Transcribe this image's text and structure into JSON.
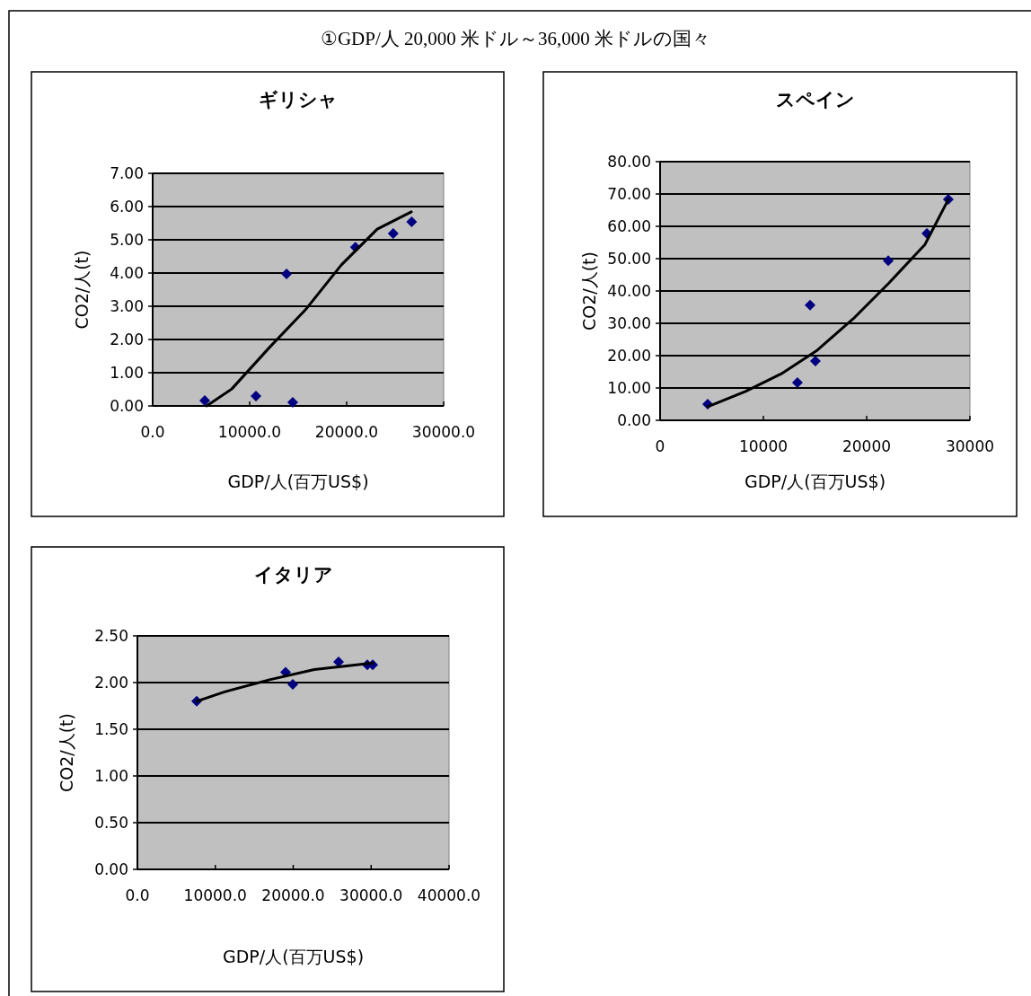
{
  "chart_data": [
    {
      "type": "scatter",
      "title": "ギリシャ",
      "annotations": [
        "①GDP/人 20,000 米ドル～36,000 米ドルの国々"
      ],
      "xlabel": "GDP/人(百万US$)",
      "ylabel": "CO2/人(t)",
      "xlim": [
        0,
        30000
      ],
      "ylim": [
        0,
        7
      ],
      "grid": "y",
      "xticks": [
        {
          "value": 0,
          "label": "0.0"
        },
        {
          "value": 10000,
          "label": "10000.0"
        },
        {
          "value": 20000,
          "label": "20000.0"
        },
        {
          "value": 30000,
          "label": "30000.0"
        }
      ],
      "yticks": [
        {
          "value": 0,
          "label": "0.00"
        },
        {
          "value": 1,
          "label": "1.00"
        },
        {
          "value": 2,
          "label": "2.00"
        },
        {
          "value": 3,
          "label": "3.00"
        },
        {
          "value": 4,
          "label": "4.00"
        },
        {
          "value": 5,
          "label": "5.00"
        },
        {
          "value": 6,
          "label": "6.00"
        },
        {
          "value": 7,
          "label": "7.00"
        }
      ],
      "series": [
        {
          "color": "#000080",
          "marker": "diamond",
          "x": [
            5370,
            10650,
            13800,
            14440,
            20900,
            24800,
            26700
          ],
          "values": [
            0.16,
            0.3,
            3.97,
            0.11,
            4.78,
            5.19,
            5.54
          ]
        },
        {
          "type": "line",
          "marker": "none",
          "color": "#000000",
          "x": [
            5560,
            8150,
            12040,
            15740,
            19440,
            23150,
            26670
          ],
          "values": [
            0.0,
            0.51,
            1.76,
            2.89,
            4.24,
            5.32,
            5.84
          ]
        }
      ]
    },
    {
      "type": "scatter",
      "title": "スペイン",
      "xlabel": "GDP/人(百万US$)",
      "ylabel": "CO2/人(t)",
      "xlim": [
        0,
        30000
      ],
      "ylim": [
        0,
        80
      ],
      "grid": "y",
      "xticks": [
        0,
        10000,
        20000,
        30000
      ],
      "yticks": [
        {
          "value": 0,
          "label": "0.00"
        },
        {
          "value": 10,
          "label": "10.00"
        },
        {
          "value": 20,
          "label": "20.00"
        },
        {
          "value": 30,
          "label": "30.00"
        },
        {
          "value": 40,
          "label": "40.00"
        },
        {
          "value": 50,
          "label": "50.00"
        },
        {
          "value": 60,
          "label": "60.00"
        },
        {
          "value": 70,
          "label": "70.00"
        },
        {
          "value": 80,
          "label": "80.00"
        }
      ],
      "series": [
        {
          "color": "#000080",
          "marker": "diamond",
          "x": [
            4610,
            13300,
            14520,
            15040,
            22090,
            25830,
            27910
          ],
          "values": [
            5.0,
            11.7,
            35.6,
            18.3,
            49.4,
            57.8,
            68.3
          ]
        },
        {
          "type": "line",
          "marker": "none",
          "color": "#000000",
          "x": [
            4610,
            8260,
            11740,
            15220,
            18700,
            22170,
            25650,
            27910
          ],
          "values": [
            4.2,
            8.9,
            14.4,
            21.7,
            31.4,
            42.5,
            54.4,
            68.3
          ]
        }
      ]
    },
    {
      "type": "scatter",
      "title": "イタリア",
      "xlabel": "GDP/人(百万US$)",
      "ylabel": "CO2/人(t)",
      "xlim": [
        0,
        40000
      ],
      "ylim": [
        0,
        2.5
      ],
      "grid": "y",
      "xticks": [
        {
          "value": 0,
          "label": "0.0"
        },
        {
          "value": 10000,
          "label": "10000.0"
        },
        {
          "value": 20000,
          "label": "20000.0"
        },
        {
          "value": 30000,
          "label": "30000.0"
        },
        {
          "value": 40000,
          "label": "40000.0"
        }
      ],
      "yticks": [
        {
          "value": 0,
          "label": "0.00"
        },
        {
          "value": 0.5,
          "label": "0.50"
        },
        {
          "value": 1,
          "label": "1.00"
        },
        {
          "value": 1.5,
          "label": "1.50"
        },
        {
          "value": 2,
          "label": "2.00"
        },
        {
          "value": 2.5,
          "label": "2.50"
        }
      ],
      "series": [
        {
          "color": "#000080",
          "marker": "diamond",
          "x": [
            7610,
            19020,
            19940,
            25820,
            29510,
            30200
          ],
          "values": [
            1.8,
            2.11,
            1.98,
            2.22,
            2.19,
            2.19
          ]
        },
        {
          "type": "line",
          "marker": "none",
          "color": "#000000",
          "x": [
            7610,
            11180,
            16950,
            22710,
            30200
          ],
          "values": [
            1.8,
            1.9,
            2.03,
            2.14,
            2.21
          ]
        }
      ]
    }
  ]
}
